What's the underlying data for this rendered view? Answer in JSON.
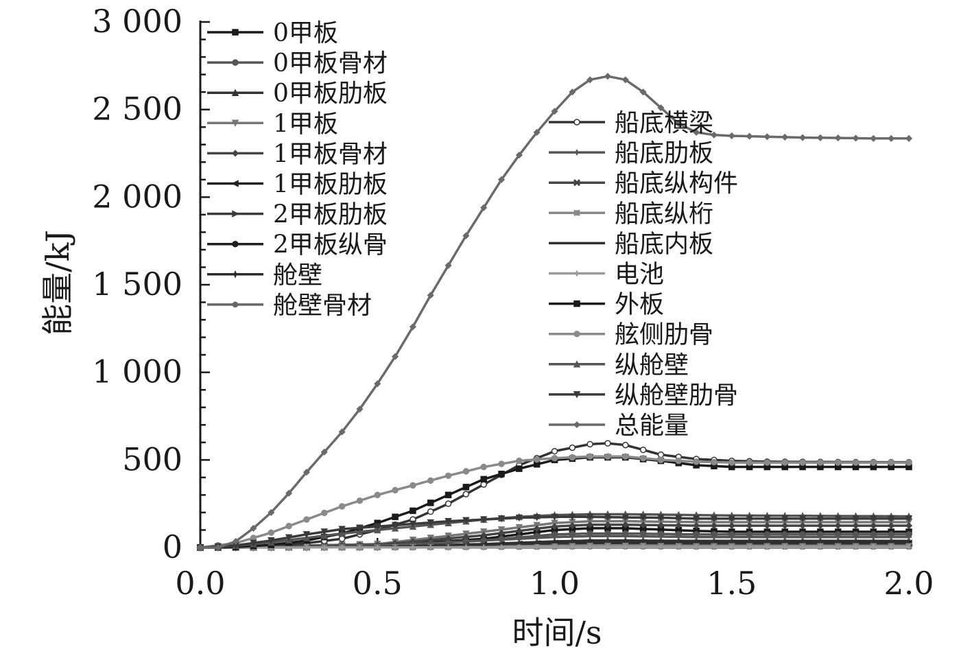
{
  "chart_data": {
    "type": "line",
    "xlabel": "时间/s",
    "ylabel": "能量/kJ",
    "xlim": [
      0,
      2.0
    ],
    "ylim": [
      0,
      3000
    ],
    "x_ticks": [
      0,
      0.5,
      1.0,
      1.5,
      2.0
    ],
    "x_tick_labels": [
      "0.0",
      "0.5",
      "1.0",
      "1.5",
      "2.0"
    ],
    "y_ticks": [
      0,
      500,
      1000,
      1500,
      2000,
      2500,
      3000
    ],
    "y_tick_labels": [
      "0",
      "500",
      "1 000",
      "1 500",
      "2 000",
      "2 500",
      "3 000"
    ],
    "legend_left": [
      "0甲板",
      "0甲板骨材",
      "0甲板肋板",
      "1甲板",
      "1甲板骨材",
      "1甲板肋板",
      "2甲板肋板",
      "2甲板纵骨",
      "舱壁",
      "舱壁骨材"
    ],
    "legend_right": [
      "船底横梁",
      "船底肋板",
      "船底纵构件",
      "船底纵桁",
      "船底内板",
      "电池",
      "外板",
      "舷侧肋骨",
      "纵舱壁",
      "纵舱壁肋骨",
      "总能量"
    ],
    "series": [
      {
        "name": "0甲板",
        "color": "#1a1a1a",
        "marker": "square",
        "x": [
          0,
          0.5,
          0.8,
          1.0,
          1.1,
          1.2,
          1.4,
          1.5,
          2.0
        ],
        "y": [
          0,
          10,
          50,
          100,
          110,
          110,
          95,
          90,
          90
        ]
      },
      {
        "name": "0甲板骨材",
        "color": "#555555",
        "marker": "circle",
        "x": [
          0,
          0.5,
          0.8,
          1.0,
          1.1,
          1.2,
          1.4,
          1.5,
          2.0
        ],
        "y": [
          0,
          8,
          40,
          75,
          80,
          80,
          75,
          75,
          75
        ]
      },
      {
        "name": "0甲板肋板",
        "color": "#333333",
        "marker": "triangle-up",
        "x": [
          0,
          0.5,
          0.8,
          1.0,
          1.1,
          1.2,
          1.4,
          1.5,
          2.0
        ],
        "y": [
          0,
          5,
          20,
          35,
          40,
          40,
          38,
          38,
          38
        ]
      },
      {
        "name": "1甲板",
        "color": "#777777",
        "marker": "triangle-down",
        "x": [
          0,
          0.5,
          0.8,
          1.0,
          1.1,
          1.2,
          1.4,
          1.5,
          2.0
        ],
        "y": [
          0,
          20,
          90,
          140,
          150,
          150,
          145,
          145,
          145
        ]
      },
      {
        "name": "1甲板骨材",
        "color": "#444444",
        "marker": "diamond",
        "x": [
          0,
          0.5,
          0.8,
          1.0,
          1.1,
          1.2,
          1.4,
          1.5,
          2.0
        ],
        "y": [
          0,
          15,
          70,
          120,
          130,
          130,
          125,
          125,
          125
        ]
      },
      {
        "name": "1甲板肋板",
        "color": "#222222",
        "marker": "triangle-left",
        "x": [
          0,
          0.5,
          0.8,
          1.0,
          1.1,
          1.2,
          1.4,
          1.5,
          2.0
        ],
        "y": [
          0,
          5,
          15,
          25,
          28,
          28,
          25,
          25,
          25
        ]
      },
      {
        "name": "2甲板肋板",
        "color": "#3a3a3a",
        "marker": "triangle-right",
        "x": [
          0,
          0.5,
          0.8,
          1.0,
          1.1,
          1.2,
          1.4,
          1.5,
          2.0
        ],
        "y": [
          0,
          3,
          10,
          15,
          18,
          18,
          16,
          16,
          16
        ]
      },
      {
        "name": "2甲板纵骨",
        "color": "#1f1f1f",
        "marker": "hexagon",
        "x": [
          0,
          0.5,
          0.8,
          1.0,
          1.1,
          1.2,
          1.4,
          1.5,
          2.0
        ],
        "y": [
          0,
          2,
          8,
          12,
          14,
          14,
          12,
          12,
          12
        ]
      },
      {
        "name": "舱壁",
        "color": "#2a2a2a",
        "marker": "star",
        "x": [
          0,
          0.5,
          0.8,
          1.0,
          1.1,
          1.2,
          1.4,
          1.5,
          2.0
        ],
        "y": [
          0,
          2,
          5,
          8,
          10,
          10,
          9,
          9,
          9
        ]
      },
      {
        "name": "舱壁骨材",
        "color": "#666666",
        "marker": "pentagon",
        "x": [
          0,
          0.5,
          0.8,
          1.0,
          1.1,
          1.2,
          1.4,
          1.5,
          2.0
        ],
        "y": [
          0,
          1,
          3,
          5,
          6,
          6,
          5,
          5,
          5
        ]
      },
      {
        "name": "船底横梁",
        "color": "#333333",
        "marker": "circle-open",
        "x": [
          0,
          0.1,
          0.2,
          0.3,
          0.4,
          0.5,
          0.6,
          0.7,
          0.8,
          0.9,
          1.0,
          1.1,
          1.15,
          1.2,
          1.3,
          1.4,
          1.5,
          1.6,
          1.8,
          2.0
        ],
        "y": [
          0,
          2,
          10,
          25,
          50,
          100,
          160,
          250,
          360,
          470,
          550,
          590,
          595,
          585,
          530,
          505,
          495,
          490,
          488,
          487
        ]
      },
      {
        "name": "船底肋板",
        "color": "#555555",
        "marker": "plus",
        "x": [
          0,
          0.5,
          0.8,
          1.0,
          1.1,
          1.2,
          1.4,
          1.5,
          2.0
        ],
        "y": [
          0,
          10,
          40,
          60,
          65,
          65,
          60,
          60,
          60
        ]
      },
      {
        "name": "船底纵构件",
        "color": "#444444",
        "marker": "x",
        "x": [
          0,
          0.5,
          0.8,
          1.0,
          1.1,
          1.2,
          1.4,
          1.5,
          2.0
        ],
        "y": [
          0,
          2,
          5,
          8,
          10,
          10,
          8,
          8,
          8
        ]
      },
      {
        "name": "船底纵桁",
        "color": "#888888",
        "marker": "asterisk",
        "x": [
          0,
          0.5,
          0.8,
          1.0,
          1.1,
          1.2,
          1.4,
          1.5,
          2.0
        ],
        "y": [
          0,
          2,
          5,
          10,
          12,
          12,
          10,
          10,
          10
        ]
      },
      {
        "name": "船底内板",
        "color": "#2f2f2f",
        "marker": "none",
        "x": [
          0,
          0.5,
          0.8,
          1.0,
          1.1,
          1.2,
          1.4,
          1.5,
          2.0
        ],
        "y": [
          0,
          3,
          15,
          30,
          35,
          35,
          32,
          32,
          32
        ]
      },
      {
        "name": "电池",
        "color": "#999999",
        "marker": "vbar",
        "x": [
          0,
          0.5,
          0.8,
          1.0,
          1.1,
          1.2,
          1.4,
          1.5,
          2.0
        ],
        "y": [
          0,
          1,
          2,
          3,
          3,
          3,
          3,
          3,
          3
        ]
      },
      {
        "name": "外板",
        "color": "#1a1a1a",
        "marker": "square",
        "x": [
          0,
          0.1,
          0.2,
          0.3,
          0.4,
          0.5,
          0.6,
          0.7,
          0.8,
          0.9,
          1.0,
          1.1,
          1.2,
          1.3,
          1.4,
          1.5,
          1.6,
          1.8,
          2.0
        ],
        "y": [
          0,
          3,
          15,
          40,
          80,
          140,
          210,
          300,
          390,
          450,
          500,
          515,
          515,
          495,
          470,
          460,
          460,
          460,
          460
        ]
      },
      {
        "name": "舷侧肋骨",
        "color": "#8a8a8a",
        "marker": "circle",
        "x": [
          0,
          0.1,
          0.2,
          0.3,
          0.4,
          0.5,
          0.6,
          0.7,
          0.8,
          0.9,
          1.0,
          1.1,
          1.2,
          1.3,
          1.4,
          1.5,
          1.6,
          1.8,
          2.0
        ],
        "y": [
          0,
          25,
          85,
          160,
          235,
          300,
          355,
          410,
          460,
          495,
          510,
          520,
          520,
          500,
          490,
          485,
          485,
          485,
          485
        ]
      },
      {
        "name": "纵舱壁",
        "color": "#555555",
        "marker": "triangle-up",
        "x": [
          0,
          0.1,
          0.2,
          0.3,
          0.4,
          0.5,
          0.6,
          0.7,
          0.8,
          0.9,
          1.0,
          1.1,
          1.2,
          1.3,
          1.4,
          1.5,
          1.6,
          1.8,
          2.0
        ],
        "y": [
          0,
          10,
          30,
          55,
          80,
          100,
          120,
          140,
          160,
          175,
          185,
          190,
          190,
          188,
          185,
          183,
          182,
          180,
          178
        ]
      },
      {
        "name": "纵舱壁肋骨",
        "color": "#3a3a3a",
        "marker": "triangle-down",
        "x": [
          0,
          0.1,
          0.2,
          0.3,
          0.4,
          0.5,
          0.6,
          0.7,
          0.8,
          0.9,
          1.0,
          1.1,
          1.2,
          1.3,
          1.4,
          1.5,
          1.6,
          1.8,
          2.0
        ],
        "y": [
          0,
          12,
          40,
          75,
          105,
          120,
          135,
          150,
          160,
          170,
          175,
          175,
          172,
          170,
          165,
          165,
          165,
          165,
          165
        ]
      },
      {
        "name": "总能量",
        "color": "#6a6a6a",
        "marker": "diamond",
        "x": [
          0,
          0.05,
          0.1,
          0.15,
          0.2,
          0.25,
          0.3,
          0.35,
          0.4,
          0.45,
          0.5,
          0.55,
          0.6,
          0.65,
          0.7,
          0.75,
          0.8,
          0.85,
          0.9,
          0.95,
          1.0,
          1.05,
          1.1,
          1.15,
          1.2,
          1.25,
          1.3,
          1.35,
          1.4,
          1.45,
          1.5,
          1.6,
          1.7,
          1.8,
          1.9,
          2.0
        ],
        "y": [
          0,
          0,
          35,
          110,
          200,
          310,
          430,
          545,
          660,
          790,
          935,
          1090,
          1260,
          1440,
          1610,
          1780,
          1940,
          2100,
          2240,
          2370,
          2490,
          2600,
          2670,
          2690,
          2670,
          2600,
          2510,
          2420,
          2370,
          2355,
          2350,
          2345,
          2340,
          2338,
          2335,
          2335
        ]
      }
    ]
  }
}
